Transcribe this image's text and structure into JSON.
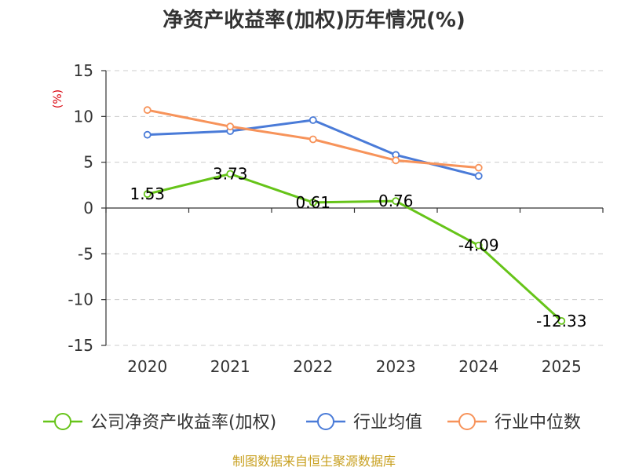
{
  "chart_data": {
    "type": "line",
    "title": "净资产收益率(加权)历年情况(%)",
    "ylabel": "(%)",
    "xlabel": "",
    "categories": [
      "2020",
      "2021",
      "2022",
      "2023",
      "2024",
      "2025"
    ],
    "ylim": [
      -15,
      15
    ],
    "yticks": [
      15,
      10,
      5,
      0,
      -5,
      -10,
      -15
    ],
    "grid": true,
    "legend_position": "bottom",
    "series": [
      {
        "name": "公司净资产收益率(加权)",
        "color": "#66c419",
        "values": [
          1.53,
          3.73,
          0.61,
          0.76,
          -4.09,
          -12.33
        ],
        "labels": [
          "1.53",
          "3.73",
          "0.61",
          "0.76",
          "-4.09",
          "-12.33"
        ]
      },
      {
        "name": "行业均值",
        "color": "#4a7bd8",
        "values": [
          8.0,
          8.4,
          9.6,
          5.8,
          3.5,
          null
        ]
      },
      {
        "name": "行业中位数",
        "color": "#f7935a",
        "values": [
          10.7,
          8.9,
          7.5,
          5.2,
          4.4,
          null
        ]
      }
    ],
    "source": "制图数据来自恒生聚源数据库"
  }
}
